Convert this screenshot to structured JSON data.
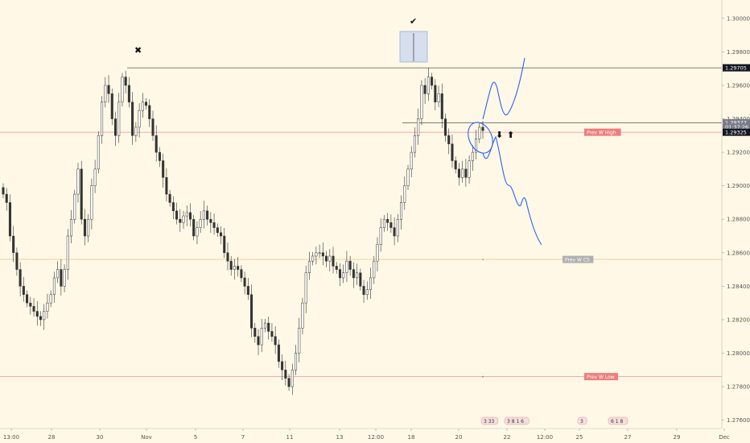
{
  "chart_data": {
    "type": "candlestick",
    "x_labels": [
      "13:00",
      "28",
      "30",
      "Nov",
      "5",
      "7",
      "11",
      "13",
      "12:00",
      "18",
      "20",
      "22",
      "12:00",
      "25",
      "27",
      "29",
      "Dec"
    ],
    "y_ticks": [
      "1.30000",
      "1.29800",
      "1.29600",
      "1.29400",
      "1.29200",
      "1.29000",
      "1.28800",
      "1.28600",
      "1.28400",
      "1.28200",
      "1.28000",
      "1.27800",
      "1.27600"
    ],
    "ylim": [
      1.2755,
      1.3011
    ],
    "price_labels": [
      {
        "text": "1.29705",
        "value": 1.29705,
        "color": "#131722"
      },
      {
        "text": "1.29377",
        "value": 1.29377,
        "color": "#787b86"
      },
      {
        "text": "01:37:26",
        "value": 1.29335,
        "color": "#787b86"
      },
      {
        "text": "1.29325",
        "value": 1.29325,
        "color": "#131722"
      }
    ],
    "levels": [
      {
        "name": "Prev W High",
        "value": 1.2932,
        "color": "#f0a0a0",
        "label_color": "#f07c7c"
      },
      {
        "name": "Prev W CS",
        "value": 1.2856,
        "color": "#f7c98b",
        "label_color": "#b0b0b0"
      },
      {
        "name": "Prev W Low",
        "value": 1.2786,
        "color": "#f0a0a0",
        "label_color": "#f07c7c"
      }
    ],
    "annotations": {
      "x_mark": "✖",
      "check_mark": "✔",
      "down_arrow": "⬇",
      "up_arrow": "⬆"
    },
    "events": [
      {
        "text": "3 33"
      },
      {
        "text": "3 8 1 6"
      },
      {
        "text": "3"
      },
      {
        "text": "6 1 8"
      }
    ],
    "candles_close": [
      1.2895,
      1.289,
      1.287,
      1.286,
      1.285,
      1.284,
      1.2835,
      1.283,
      1.2828,
      1.2825,
      1.2822,
      1.282,
      1.2825,
      1.283,
      1.2835,
      1.2845,
      1.285,
      1.284,
      1.285,
      1.287,
      1.288,
      1.2895,
      1.291,
      1.288,
      1.287,
      1.288,
      1.29,
      1.291,
      1.293,
      1.295,
      1.296,
      1.2955,
      1.294,
      1.293,
      1.295,
      1.2965,
      1.296,
      1.295,
      1.293,
      1.2935,
      1.2945,
      1.295,
      1.2948,
      1.294,
      1.293,
      1.292,
      1.2915,
      1.2905,
      1.2895,
      1.289,
      1.2885,
      1.288,
      1.2878,
      1.2882,
      1.2884,
      1.288,
      1.287,
      1.2875,
      1.288,
      1.2885,
      1.288,
      1.2878,
      1.2875,
      1.2872,
      1.287,
      1.286,
      1.2855,
      1.285,
      1.2852,
      1.285,
      1.2845,
      1.284,
      1.2835,
      1.2815,
      1.281,
      1.2805,
      1.2815,
      1.2818,
      1.2813,
      1.281,
      1.2805,
      1.2795,
      1.279,
      1.2785,
      1.278,
      1.279,
      1.28,
      1.2815,
      1.283,
      1.2848,
      1.2855,
      1.2858,
      1.286,
      1.286,
      1.2858,
      1.2855,
      1.2858,
      1.2852,
      1.285,
      1.2845,
      1.2848,
      1.2855,
      1.285,
      1.2845,
      1.2848,
      1.284,
      1.2835,
      1.2838,
      1.2845,
      1.2855,
      1.2865,
      1.2875,
      1.288,
      1.2878,
      1.2875,
      1.287,
      1.288,
      1.289,
      1.29,
      1.291,
      1.292,
      1.293,
      1.294,
      1.296,
      1.2955,
      1.2965,
      1.296,
      1.295,
      1.2955,
      1.294,
      1.293,
      1.2925,
      1.2915,
      1.291,
      1.2905,
      1.291,
      1.2905,
      1.2915,
      1.292,
      1.2928,
      1.2935,
      1.2933
    ]
  }
}
